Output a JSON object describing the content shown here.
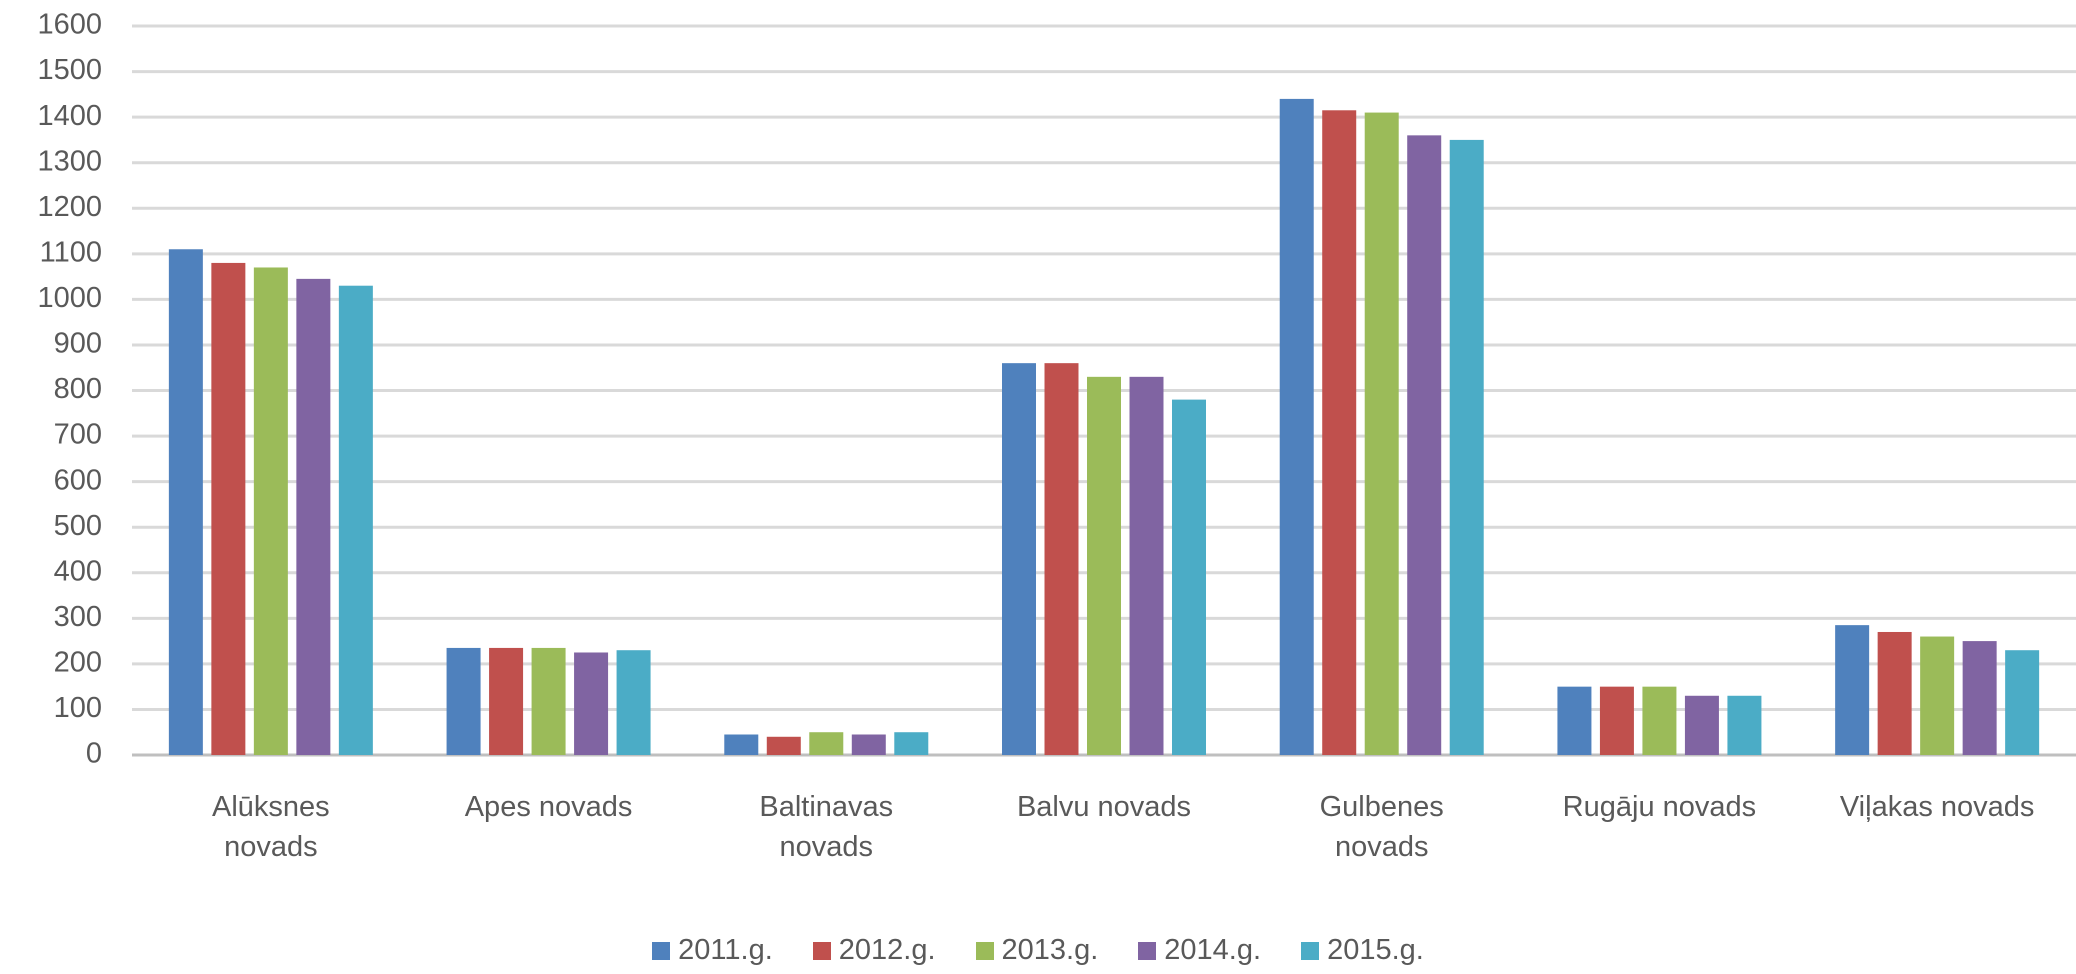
{
  "chart_data": {
    "type": "bar",
    "categories": [
      "Alūksnes novads",
      "Apes novads",
      "Baltinavas novads",
      "Balvu novads",
      "Gulbenes novads",
      "Rugāju novads",
      "Viļakas novads"
    ],
    "series": [
      {
        "name": "2011.g.",
        "color": "#4f81bd",
        "values": [
          1110,
          235,
          45,
          860,
          1440,
          150,
          285
        ]
      },
      {
        "name": "2012.g.",
        "color": "#c0504d",
        "values": [
          1080,
          235,
          40,
          860,
          1415,
          150,
          270
        ]
      },
      {
        "name": "2013.g.",
        "color": "#9bbb59",
        "values": [
          1070,
          235,
          50,
          830,
          1410,
          150,
          260
        ]
      },
      {
        "name": "2014.g.",
        "color": "#8064a2",
        "values": [
          1045,
          225,
          45,
          830,
          1360,
          130,
          250
        ]
      },
      {
        "name": "2015.g.",
        "color": "#4bacc6",
        "values": [
          1030,
          230,
          50,
          780,
          1350,
          130,
          230
        ]
      }
    ],
    "ylim": [
      0,
      1600
    ],
    "yticks": [
      0,
      100,
      200,
      300,
      400,
      500,
      600,
      700,
      800,
      900,
      1000,
      1100,
      1200,
      1300,
      1400,
      1500,
      1600
    ],
    "grid": true,
    "legend": "bottom"
  }
}
